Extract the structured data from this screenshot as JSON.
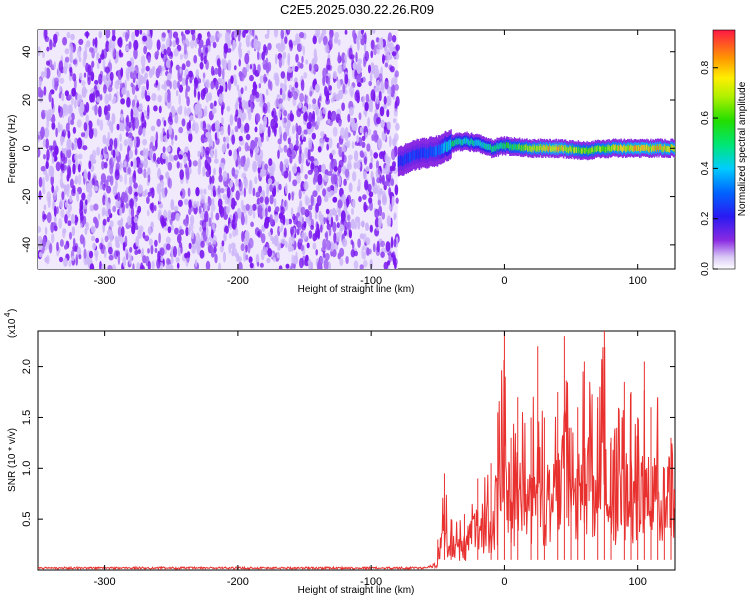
{
  "title": "C2E5.2025.030.22.26.R09",
  "chart_data": [
    {
      "type": "heatmap",
      "xlabel": "Height of straight line (km)",
      "ylabel": "Frequency (Hz)",
      "xlim": [
        -350,
        128
      ],
      "ylim": [
        -50,
        49
      ],
      "x_ticks": [
        -300,
        -200,
        -100,
        0,
        100
      ],
      "y_ticks": [
        -40,
        -20,
        0,
        20,
        40
      ],
      "noise_region_x": [
        -350,
        -80
      ],
      "signal_trace": {
        "x": [
          -80,
          -70,
          -60,
          -50,
          -40,
          -30,
          -20,
          -10,
          0,
          20,
          40,
          60,
          80,
          100,
          128
        ],
        "freq": [
          -6,
          -3,
          -2,
          -1,
          2,
          3,
          2,
          0,
          1,
          0,
          0,
          -1,
          0,
          0,
          0
        ],
        "amplitude": [
          0.25,
          0.3,
          0.3,
          0.35,
          0.55,
          0.55,
          0.5,
          0.55,
          0.6,
          0.8,
          0.9,
          0.7,
          0.8,
          0.9,
          0.85
        ]
      },
      "colorbar": {
        "label": "Normalized spectral amplitude",
        "range": [
          0.0,
          0.95
        ],
        "ticks": [
          0.0,
          0.2,
          0.4,
          0.6,
          0.8
        ]
      }
    },
    {
      "type": "line",
      "xlabel": "Height of straight line (km)",
      "ylabel": "SNR (10 * v/v)",
      "multiplier_label": "(x10",
      "multiplier_exp": "4",
      "xlim": [
        -350,
        128
      ],
      "ylim": [
        0,
        2.35
      ],
      "x_ticks": [
        -300,
        -200,
        -100,
        0,
        100
      ],
      "y_ticks": [
        0.5,
        1.0,
        1.5,
        2.0
      ],
      "color": "#e8312f",
      "peaks": {
        "x": [
          -50,
          -45,
          -40,
          -30,
          -20,
          -10,
          -5,
          0,
          5,
          10,
          20,
          25,
          30,
          40,
          45,
          50,
          55,
          60,
          70,
          75,
          80,
          90,
          95,
          100,
          105,
          110,
          115,
          120,
          125
        ],
        "y": [
          0.3,
          0.95,
          0.5,
          0.55,
          0.9,
          1.05,
          1.55,
          2.35,
          1.3,
          1.7,
          1.5,
          2.2,
          1.5,
          1.75,
          2.3,
          1.4,
          1.6,
          2.05,
          1.7,
          2.35,
          1.3,
          1.85,
          1.75,
          1.5,
          2.05,
          1.6,
          1.7,
          1.0,
          1.3
        ]
      }
    }
  ]
}
